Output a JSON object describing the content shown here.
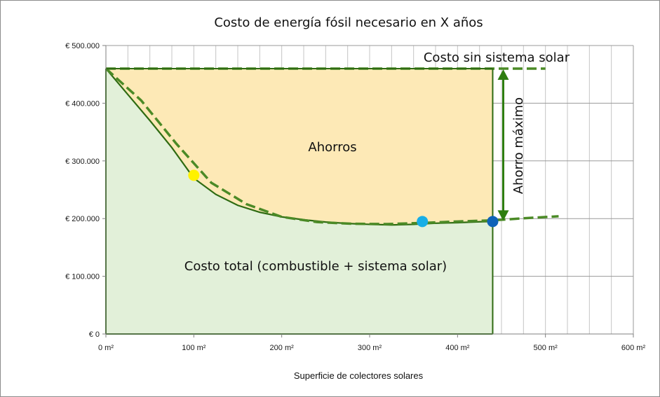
{
  "chart_data": {
    "type": "area",
    "title": "Costo de energía fósil necesario en X años",
    "xlabel": "Superficie de colectores solares",
    "ylabel": "",
    "xlim": [
      0,
      600
    ],
    "ylim": [
      0,
      500000
    ],
    "x_ticks": [
      0,
      100,
      200,
      300,
      400,
      500,
      600
    ],
    "x_tick_labels": [
      "0 m²",
      "100 m²",
      "200 m²",
      "300 m²",
      "400 m²",
      "500 m²",
      "600 m²"
    ],
    "y_ticks": [
      0,
      100000,
      200000,
      300000,
      400000,
      500000
    ],
    "y_tick_labels": [
      "€ 0",
      "€ 100.000",
      "€ 200.000",
      "€ 300.000",
      "€ 400.000",
      "€ 500.000"
    ],
    "grid": true,
    "colors": {
      "total_fill": "#e2f0d9",
      "savings_fill": "#fde9b6",
      "line": "#2e6b12",
      "dashed": "#4b8a26",
      "arrow": "#2e7d10",
      "point_yellow": "#fff200",
      "point_light_blue": "#18aee6",
      "point_dark_blue": "#0f63b8"
    },
    "series": [
      {
        "values": [
          [
            0,
            460000
          ],
          [
            25,
            415000
          ],
          [
            50,
            370000
          ],
          [
            75,
            323000
          ],
          [
            100,
            270000
          ],
          [
            125,
            242000
          ],
          [
            150,
            223000
          ],
          [
            175,
            211000
          ],
          [
            200,
            203000
          ],
          [
            225,
            198000
          ],
          [
            250,
            194000
          ],
          [
            275,
            191500
          ],
          [
            300,
            190000
          ],
          [
            325,
            189000
          ],
          [
            350,
            190000
          ],
          [
            375,
            192000
          ],
          [
            400,
            193000
          ],
          [
            425,
            194500
          ],
          [
            440,
            195000
          ]
        ]
      }
    ],
    "trend_line": [
      [
        0,
        460000
      ],
      [
        40,
        405000
      ],
      [
        80,
        330000
      ],
      [
        120,
        262000
      ],
      [
        160,
        225000
      ],
      [
        200,
        203000
      ],
      [
        240,
        194000
      ],
      [
        280,
        191000
      ],
      [
        320,
        190500
      ],
      [
        360,
        192500
      ],
      [
        400,
        195000
      ],
      [
        440,
        197000
      ],
      [
        480,
        201000
      ],
      [
        515,
        204000
      ]
    ],
    "reference_line": {
      "y": 460000,
      "x": [
        0,
        500
      ]
    },
    "points": [
      {
        "x": 100,
        "y": 275000,
        "color": "point_yellow"
      },
      {
        "x": 360,
        "y": 195000,
        "color": "point_light_blue"
      },
      {
        "x": 440,
        "y": 195000,
        "color": "point_dark_blue"
      }
    ],
    "arrow": {
      "x": 452,
      "y_top": 460000,
      "y_bottom": 195000
    },
    "region_end_x": 440,
    "annotations": {
      "ahorros": "Ahorros",
      "costo_total": "Costo total (combustible + sistema solar)",
      "costo_sin": "Costo sin sistema solar",
      "ahorro_maximo": "Ahorro máximo"
    }
  }
}
